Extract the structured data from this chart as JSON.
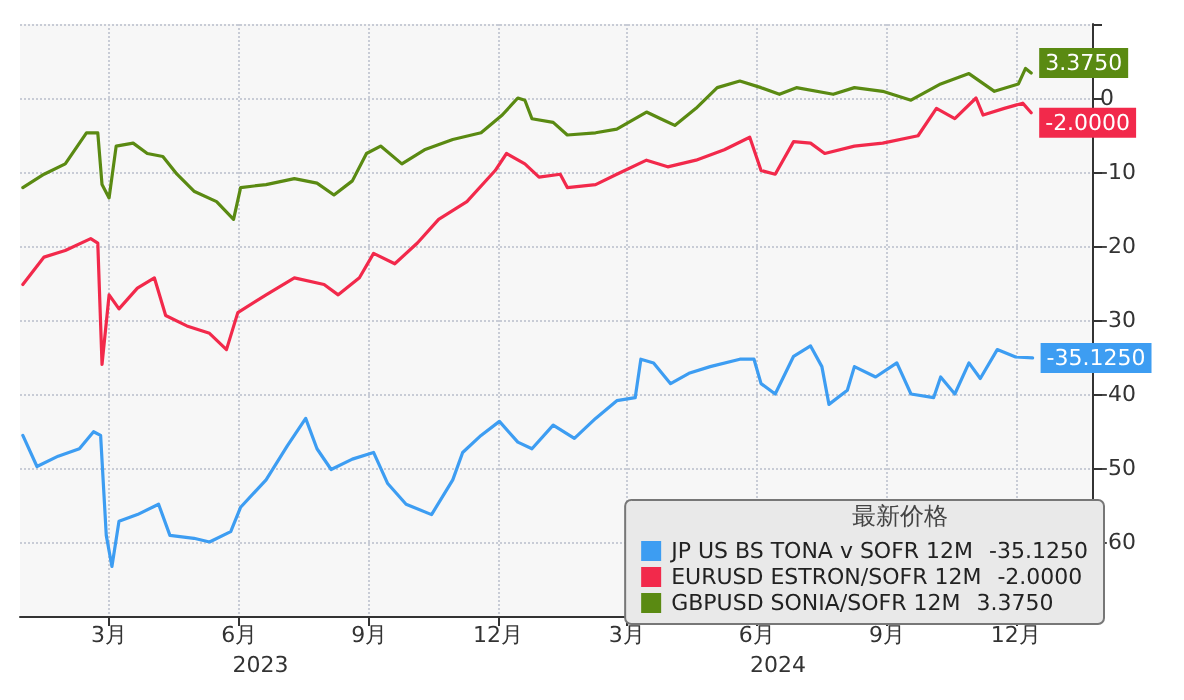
{
  "chart_data": {
    "type": "line",
    "legend_title": "最新价格",
    "legend": "bottom right",
    "grid": true,
    "marker": "none",
    "line_style": "solid",
    "xlim": [
      "2023-01-12",
      "2025-02-08"
    ],
    "xticks": [
      {
        "value": "2023-03-16",
        "label": "3月"
      },
      {
        "value": "2023-06-16",
        "label": "6月"
      },
      {
        "value": "2023-09-16",
        "label": "9月"
      },
      {
        "value": "2023-12-16",
        "label": "12月"
      },
      {
        "value": "2024-03-16",
        "label": "3月"
      },
      {
        "value": "2024-06-16",
        "label": "6月"
      },
      {
        "value": "2024-09-16",
        "label": "9月"
      },
      {
        "value": "2024-12-16",
        "label": "12月"
      }
    ],
    "x2lim": [
      "2023-01-12",
      "2025-02-08"
    ],
    "x2ticks": [
      {
        "value": "2023-07-01",
        "label": "2023"
      },
      {
        "value": "2024-07-01",
        "label": "2024"
      }
    ],
    "ylim": [
      -70,
      10
    ],
    "yticks": [
      {
        "value": -70,
        "label": null
      },
      -60,
      -50,
      -40,
      -30,
      -20,
      -10,
      0,
      {
        "value": 10,
        "label": null
      }
    ],
    "series": [
      {
        "name": "JP US BS TONA v SOFR 12M",
        "color": "#3d9df2",
        "x": [
          "2023-01-14",
          "2023-01-24",
          "2023-02-08",
          "2023-02-23",
          "2023-03-05",
          "2023-03-10",
          "2023-03-14",
          "2023-03-18",
          "2023-03-23",
          "2023-04-05",
          "2023-04-20",
          "2023-04-28",
          "2023-05-15",
          "2023-05-26",
          "2023-06-10",
          "2023-06-17",
          "2023-07-05",
          "2023-07-20",
          "2023-08-02",
          "2023-08-10",
          "2023-08-20",
          "2023-09-04",
          "2023-09-19",
          "2023-09-29",
          "2023-10-12",
          "2023-10-30",
          "2023-11-14",
          "2023-11-21",
          "2023-12-04",
          "2023-12-17",
          "2023-12-30",
          "2024-01-09",
          "2024-01-24",
          "2024-02-08",
          "2024-02-23",
          "2024-03-09",
          "2024-03-22",
          "2024-03-26",
          "2024-04-04",
          "2024-04-16",
          "2024-04-29",
          "2024-05-14",
          "2024-06-04",
          "2024-06-14",
          "2024-06-19",
          "2024-06-29",
          "2024-07-12",
          "2024-07-24",
          "2024-08-01",
          "2024-08-06",
          "2024-08-19",
          "2024-08-24",
          "2024-09-08",
          "2024-09-23",
          "2024-10-03",
          "2024-10-19",
          "2024-10-24",
          "2024-11-03",
          "2024-11-13",
          "2024-11-21",
          "2024-12-03",
          "2024-12-16",
          "2024-12-28"
        ],
        "values": [
          -45.6,
          -49.8,
          -48.4,
          -47.4,
          -45.1,
          -45.6,
          -59.1,
          -63.3,
          -57.2,
          -56.3,
          -54.9,
          -59.1,
          -59.5,
          -60.0,
          -58.6,
          -55.3,
          -51.6,
          -47.0,
          -43.3,
          -47.4,
          -50.2,
          -48.8,
          -47.9,
          -52.1,
          -54.9,
          -56.3,
          -51.6,
          -47.9,
          -45.6,
          -43.7,
          -46.5,
          -47.4,
          -44.2,
          -46.0,
          -43.3,
          -40.9,
          -40.5,
          -35.3,
          -35.8,
          -38.6,
          -37.2,
          -36.3,
          -35.3,
          -35.3,
          -38.6,
          -40.0,
          -34.9,
          -33.5,
          -36.3,
          -41.4,
          -39.5,
          -36.3,
          -37.7,
          -35.8,
          -40.0,
          -40.5,
          -37.7,
          -40.0,
          -35.8,
          -37.9,
          -34.0,
          -35.0,
          -35.125
        ],
        "value_labels": [
          null,
          null,
          null,
          null,
          null,
          null,
          null,
          null,
          null,
          null,
          null,
          null,
          null,
          null,
          null,
          null,
          null,
          null,
          null,
          null,
          null,
          null,
          null,
          null,
          null,
          null,
          null,
          null,
          null,
          null,
          null,
          null,
          null,
          null,
          null,
          null,
          null,
          null,
          null,
          null,
          null,
          null,
          null,
          null,
          null,
          null,
          null,
          null,
          null,
          null,
          null,
          null,
          null,
          null,
          null,
          null,
          null,
          null,
          null,
          null,
          null,
          null,
          "-35.1250"
        ]
      },
      {
        "name": "EURUSD ESTRON/SOFR 12M",
        "color": "#f2294b",
        "x": [
          "2023-01-14",
          "2023-01-29",
          "2023-02-13",
          "2023-03-03",
          "2023-03-08",
          "2023-03-11",
          "2023-03-16",
          "2023-03-23",
          "2023-04-05",
          "2023-04-17",
          "2023-04-25",
          "2023-05-10",
          "2023-05-26",
          "2023-06-07",
          "2023-06-15",
          "2023-07-05",
          "2023-07-25",
          "2023-08-15",
          "2023-08-25",
          "2023-09-09",
          "2023-09-19",
          "2023-10-04",
          "2023-10-20",
          "2023-11-04",
          "2023-11-24",
          "2023-12-14",
          "2023-12-22",
          "2024-01-04",
          "2024-01-14",
          "2024-01-29",
          "2024-02-03",
          "2024-02-23",
          "2024-03-09",
          "2024-03-30",
          "2024-04-14",
          "2024-05-04",
          "2024-05-24",
          "2024-06-11",
          "2024-06-19",
          "2024-06-29",
          "2024-07-12",
          "2024-07-24",
          "2024-08-03",
          "2024-08-24",
          "2024-09-13",
          "2024-10-08",
          "2024-10-21",
          "2024-11-03",
          "2024-11-18",
          "2024-11-23",
          "2024-12-08",
          "2024-12-21",
          "2024-12-27"
        ],
        "values": [
          -25.2,
          -21.5,
          -20.6,
          -19.0,
          -19.6,
          -36.0,
          -26.6,
          -28.5,
          -25.7,
          -24.3,
          -29.4,
          -30.8,
          -31.8,
          -34.0,
          -29.0,
          -26.6,
          -24.3,
          -25.2,
          -26.6,
          -24.3,
          -21.0,
          -22.4,
          -19.6,
          -16.4,
          -14.0,
          -9.8,
          -7.5,
          -8.9,
          -10.7,
          -10.3,
          -12.1,
          -11.7,
          -10.3,
          -8.4,
          -9.3,
          -8.4,
          -7.0,
          -5.3,
          -9.8,
          -10.3,
          -5.9,
          -6.1,
          -7.5,
          -6.5,
          -6.1,
          -5.1,
          -1.4,
          -2.8,
          0,
          -2.3,
          -1.4,
          -0.7,
          -2.0
        ],
        "value_labels": [
          null,
          null,
          null,
          null,
          null,
          null,
          null,
          null,
          null,
          null,
          null,
          null,
          null,
          null,
          null,
          null,
          null,
          null,
          null,
          null,
          null,
          null,
          null,
          null,
          null,
          null,
          null,
          null,
          null,
          null,
          null,
          null,
          null,
          null,
          null,
          null,
          null,
          null,
          null,
          null,
          null,
          null,
          null,
          null,
          null,
          null,
          null,
          null,
          null,
          null,
          null,
          null,
          "-2.0000"
        ]
      },
      {
        "name": "GBPUSD SONIA/SOFR 12M",
        "color": "#5a8a12",
        "x": [
          "2023-01-14",
          "2023-01-29",
          "2023-02-13",
          "2023-02-28",
          "2023-03-08",
          "2023-03-11",
          "2023-03-16",
          "2023-03-21",
          "2023-04-02",
          "2023-04-12",
          "2023-04-23",
          "2023-05-03",
          "2023-05-15",
          "2023-05-31",
          "2023-06-12",
          "2023-06-17",
          "2023-07-05",
          "2023-07-25",
          "2023-08-10",
          "2023-08-22",
          "2023-09-04",
          "2023-09-14",
          "2023-09-24",
          "2023-10-09",
          "2023-10-25",
          "2023-11-14",
          "2023-12-04",
          "2023-12-19",
          "2023-12-30",
          "2024-01-04",
          "2024-01-09",
          "2024-01-24",
          "2024-02-03",
          "2024-02-23",
          "2024-03-09",
          "2024-03-30",
          "2024-04-09",
          "2024-04-19",
          "2024-05-04",
          "2024-05-19",
          "2024-06-04",
          "2024-06-19",
          "2024-07-02",
          "2024-07-14",
          "2024-08-09",
          "2024-08-24",
          "2024-09-13",
          "2024-10-03",
          "2024-10-24",
          "2024-11-13",
          "2024-12-01",
          "2024-12-18",
          "2024-12-23",
          "2024-12-27"
        ],
        "values": [
          -12.1,
          -10.3,
          -8.9,
          -4.7,
          -4.7,
          -11.7,
          -13.5,
          -6.5,
          -6.1,
          -7.5,
          -7.9,
          -10.3,
          -12.6,
          -14.0,
          -16.4,
          -12.1,
          -11.7,
          -10.9,
          -11.5,
          -13.1,
          -11.2,
          -7.5,
          -6.5,
          -8.9,
          -7.0,
          -5.6,
          -4.7,
          -2.3,
          0,
          -0.3,
          -2.8,
          -3.3,
          -5.0,
          -4.7,
          -4.2,
          -1.9,
          -2.8,
          -3.7,
          -1.4,
          1.4,
          2.3,
          1.4,
          0.5,
          1.4,
          0.5,
          1.4,
          0.9,
          -0.3,
          1.9,
          3.3,
          0.9,
          1.9,
          4.0,
          3.375
        ],
        "value_labels": [
          null,
          null,
          null,
          null,
          null,
          null,
          null,
          null,
          null,
          null,
          null,
          null,
          null,
          null,
          null,
          null,
          null,
          null,
          null,
          null,
          null,
          null,
          null,
          null,
          null,
          null,
          null,
          null,
          null,
          null,
          null,
          null,
          null,
          null,
          null,
          null,
          null,
          null,
          null,
          null,
          null,
          null,
          null,
          null,
          null,
          null,
          null,
          null,
          null,
          null,
          null,
          null,
          null,
          "3.3750"
        ]
      }
    ]
  }
}
